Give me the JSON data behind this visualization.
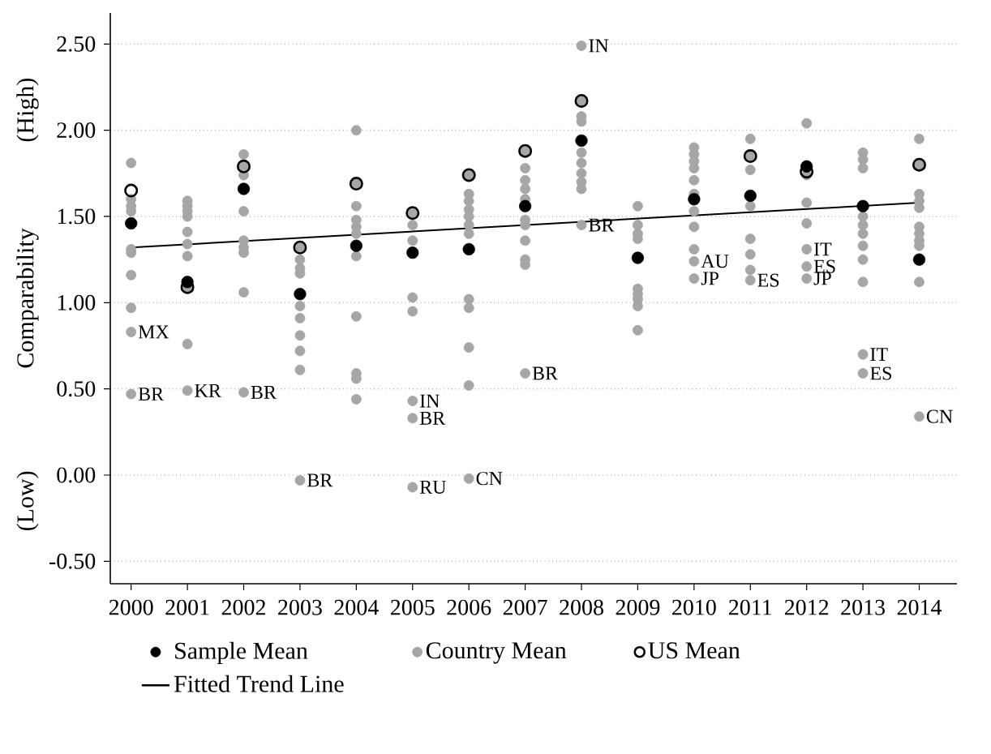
{
  "chart_data": {
    "type": "scatter",
    "ylabel": "Comparability",
    "xlim": [
      1999.63,
      2014.67
    ],
    "xticks": [
      2000,
      2001,
      2002,
      2003,
      2004,
      2005,
      2006,
      2007,
      2008,
      2009,
      2010,
      2011,
      2012,
      2013,
      2014
    ],
    "ylim": [
      -0.63,
      2.68
    ],
    "yticks": [
      {
        "value": -0.5,
        "label": "-0.50"
      },
      {
        "value": 0,
        "label": "0.00"
      },
      {
        "value": 0.5,
        "label": "0.50"
      },
      {
        "value": 1,
        "label": "1.00"
      },
      {
        "value": 1.5,
        "label": "1.50"
      },
      {
        "value": 2,
        "label": "2.00"
      },
      {
        "value": 2.5,
        "label": "2.50"
      }
    ],
    "grid": "y",
    "legend": "bottom",
    "series": [
      {
        "name": "Sample Mean",
        "marker": "circle",
        "color": "#000000",
        "x": [
          2000,
          2001,
          2002,
          2003,
          2004,
          2005,
          2006,
          2007,
          2008,
          2009,
          2010,
          2011,
          2012,
          2013,
          2014
        ],
        "values": [
          1.46,
          1.12,
          1.66,
          1.05,
          1.33,
          1.29,
          1.31,
          1.56,
          1.94,
          1.26,
          1.6,
          1.62,
          1.79,
          1.56,
          1.25
        ]
      },
      {
        "name": "Country Mean",
        "marker": "circle",
        "color": "#a6a6a6",
        "x": [
          2000,
          2000,
          2000,
          2000,
          2000,
          2000,
          2000,
          2000,
          2000,
          2000,
          2001,
          2001,
          2001,
          2001,
          2001,
          2001,
          2001,
          2001,
          2001,
          2001,
          2002,
          2002,
          2002,
          2002,
          2002,
          2002,
          2002,
          2002,
          2002,
          2003,
          2003,
          2003,
          2003,
          2003,
          2003,
          2003,
          2003,
          2003,
          2003,
          2004,
          2004,
          2004,
          2004,
          2004,
          2004,
          2004,
          2004,
          2004,
          2004,
          2004,
          2005,
          2005,
          2005,
          2005,
          2005,
          2005,
          2005,
          2005,
          2006,
          2006,
          2006,
          2006,
          2006,
          2006,
          2006,
          2006,
          2006,
          2006,
          2006,
          2006,
          2007,
          2007,
          2007,
          2007,
          2007,
          2007,
          2007,
          2007,
          2007,
          2007,
          2007,
          2008,
          2008,
          2008,
          2008,
          2008,
          2008,
          2008,
          2008,
          2008,
          2008,
          2009,
          2009,
          2009,
          2009,
          2009,
          2009,
          2009,
          2009,
          2009,
          2010,
          2010,
          2010,
          2010,
          2010,
          2010,
          2010,
          2010,
          2010,
          2010,
          2010,
          2011,
          2011,
          2011,
          2011,
          2011,
          2011,
          2011,
          2011,
          2012,
          2012,
          2012,
          2012,
          2012,
          2012,
          2012,
          2013,
          2013,
          2013,
          2013,
          2013,
          2013,
          2013,
          2013,
          2013,
          2013,
          2013,
          2014,
          2014,
          2014,
          2014,
          2014,
          2014,
          2014,
          2014,
          2014,
          2014,
          2014
        ],
        "values": [
          1.81,
          1.6,
          1.56,
          1.53,
          1.31,
          1.29,
          1.16,
          0.97,
          0.83,
          0.47,
          1.59,
          1.56,
          1.53,
          1.5,
          1.41,
          1.34,
          1.27,
          1.09,
          0.76,
          0.49,
          1.86,
          1.79,
          1.74,
          1.53,
          1.36,
          1.32,
          1.29,
          1.06,
          0.48,
          1.32,
          1.25,
          1.2,
          1.17,
          0.98,
          0.91,
          0.81,
          0.72,
          0.61,
          -0.03,
          2.0,
          1.69,
          1.56,
          1.48,
          1.44,
          1.4,
          1.27,
          0.92,
          0.59,
          0.56,
          0.44,
          1.52,
          1.45,
          1.36,
          1.03,
          0.95,
          0.43,
          0.33,
          -0.07,
          1.74,
          1.63,
          1.59,
          1.54,
          1.5,
          1.45,
          1.4,
          1.02,
          0.97,
          0.74,
          0.52,
          -0.02,
          1.88,
          1.78,
          1.71,
          1.66,
          1.6,
          1.48,
          1.45,
          1.36,
          1.25,
          1.22,
          0.59,
          2.49,
          2.17,
          2.08,
          2.05,
          1.87,
          1.81,
          1.75,
          1.7,
          1.66,
          1.45,
          1.56,
          1.45,
          1.4,
          1.37,
          1.08,
          1.05,
          1.02,
          0.98,
          0.84,
          1.9,
          1.86,
          1.82,
          1.78,
          1.71,
          1.63,
          1.53,
          1.44,
          1.31,
          1.24,
          1.14,
          1.95,
          1.85,
          1.77,
          1.56,
          1.37,
          1.28,
          1.19,
          1.13,
          2.04,
          1.74,
          1.58,
          1.46,
          1.31,
          1.21,
          1.14,
          1.87,
          1.83,
          1.78,
          1.5,
          1.45,
          1.4,
          1.33,
          1.25,
          1.12,
          0.7,
          0.59,
          1.95,
          1.8,
          1.63,
          1.59,
          1.55,
          1.44,
          1.4,
          1.36,
          1.33,
          1.12,
          0.34
        ]
      },
      {
        "name": "US Mean",
        "marker": "circle",
        "color": "#000000",
        "x": [
          2000,
          2001,
          2002,
          2003,
          2004,
          2005,
          2006,
          2007,
          2008,
          2011,
          2012,
          2014
        ],
        "values": [
          1.65,
          1.09,
          1.79,
          1.32,
          1.69,
          1.52,
          1.74,
          1.88,
          2.17,
          1.85,
          1.76,
          1.8
        ]
      },
      {
        "name": "Fitted Trend Line",
        "type": "line",
        "marker": "none",
        "line_style": "solid",
        "color": "#000000",
        "x": [
          2000,
          2014
        ],
        "values": [
          1.32,
          1.58
        ]
      }
    ],
    "annotations": [
      {
        "text": "BR",
        "x": 2000,
        "y": 0.47
      },
      {
        "text": "MX",
        "x": 2000,
        "y": 0.83
      },
      {
        "text": "KR",
        "x": 2001,
        "y": 0.49
      },
      {
        "text": "BR",
        "x": 2002,
        "y": 0.48
      },
      {
        "text": "BR",
        "x": 2003,
        "y": -0.03
      },
      {
        "text": "IN",
        "x": 2005,
        "y": 0.43
      },
      {
        "text": "BR",
        "x": 2005,
        "y": 0.33
      },
      {
        "text": "RU",
        "x": 2005,
        "y": -0.07
      },
      {
        "text": "CN",
        "x": 2006,
        "y": -0.02
      },
      {
        "text": "BR",
        "x": 2007,
        "y": 0.59
      },
      {
        "text": "IN",
        "x": 2008,
        "y": 2.49
      },
      {
        "text": "BR",
        "x": 2008,
        "y": 1.45
      },
      {
        "text": "AU",
        "x": 2010,
        "y": 1.24
      },
      {
        "text": "JP",
        "x": 2010,
        "y": 1.14
      },
      {
        "text": "ES",
        "x": 2011,
        "y": 1.13
      },
      {
        "text": "IT",
        "x": 2012,
        "y": 1.31
      },
      {
        "text": "ES",
        "x": 2012,
        "y": 1.21
      },
      {
        "text": "JP",
        "x": 2012,
        "y": 1.14
      },
      {
        "text": "IT",
        "x": 2013,
        "y": 0.7
      },
      {
        "text": "ES",
        "x": 2013,
        "y": 0.59
      },
      {
        "text": "CN",
        "x": 2014,
        "y": 0.34
      },
      "(High)",
      "(Low)"
    ]
  }
}
